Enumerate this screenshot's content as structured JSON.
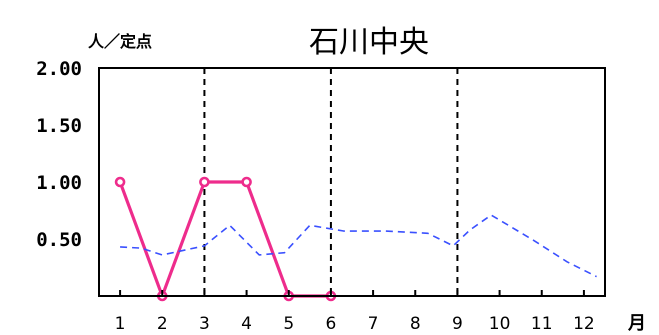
{
  "chart_data": {
    "type": "line",
    "title": "石川中央",
    "ylabel": "人／定点",
    "xlabel": "月",
    "ylim": [
      0,
      2.0
    ],
    "yticks": [
      "2.00",
      "1.50",
      "1.00",
      "0.50"
    ],
    "x_tick_labels": [
      "1",
      "2",
      "3",
      "4",
      "5",
      "6",
      "7",
      "8",
      "9",
      "10",
      "11",
      "12"
    ],
    "dashed_vertical_lines_at": [
      3,
      6,
      9
    ],
    "series": [
      {
        "style": "solid-with-circle-markers",
        "color": "#ee2c8c",
        "points": [
          [
            1,
            1.0
          ],
          [
            2,
            0.0
          ],
          [
            3,
            1.0
          ],
          [
            4,
            1.0
          ],
          [
            5,
            0.0
          ],
          [
            6,
            0.0
          ]
        ]
      },
      {
        "style": "dashed",
        "color": "#3a50ff",
        "points": [
          [
            1,
            0.43
          ],
          [
            1.5,
            0.42
          ],
          [
            2,
            0.36
          ],
          [
            3,
            0.44
          ],
          [
            3.6,
            0.62
          ],
          [
            4.3,
            0.36
          ],
          [
            4.9,
            0.38
          ],
          [
            5.5,
            0.62
          ],
          [
            6.3,
            0.57
          ],
          [
            7.3,
            0.57
          ],
          [
            8.3,
            0.55
          ],
          [
            8.9,
            0.44
          ],
          [
            9.3,
            0.58
          ],
          [
            9.8,
            0.71
          ],
          [
            10.8,
            0.49
          ],
          [
            11.6,
            0.3
          ],
          [
            12.3,
            0.17
          ]
        ]
      }
    ]
  }
}
